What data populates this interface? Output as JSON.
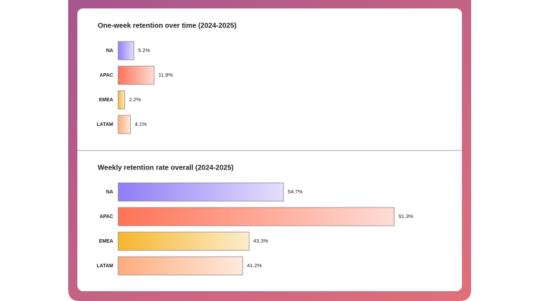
{
  "chart_data": [
    {
      "type": "bar",
      "orientation": "horizontal",
      "title": "One-week retention over time (2024-2025)",
      "categories": [
        "NA",
        "APAC",
        "EMEA",
        "LATAM"
      ],
      "values": [
        5.2,
        11.9,
        2.2,
        4.1
      ],
      "value_labels": [
        "5.2%",
        "11.9%",
        "2.2%",
        "4.1%"
      ],
      "colors": [
        "#8f7df7",
        "#ff7256",
        "#f7b52f",
        "#ffac7c"
      ]
    },
    {
      "type": "bar",
      "orientation": "horizontal",
      "title": "Weekly retention rate overall  (2024-2025)",
      "categories": [
        "NA",
        "APAC",
        "EMEA",
        "LATAM"
      ],
      "values": [
        54.7,
        91.3,
        43.3,
        41.2
      ],
      "value_labels": [
        "54.7%",
        "91.3%",
        "43.3%",
        "41.2%"
      ],
      "colors": [
        "#8f7df7",
        "#ff7256",
        "#f7b52f",
        "#ffac7c"
      ]
    }
  ]
}
